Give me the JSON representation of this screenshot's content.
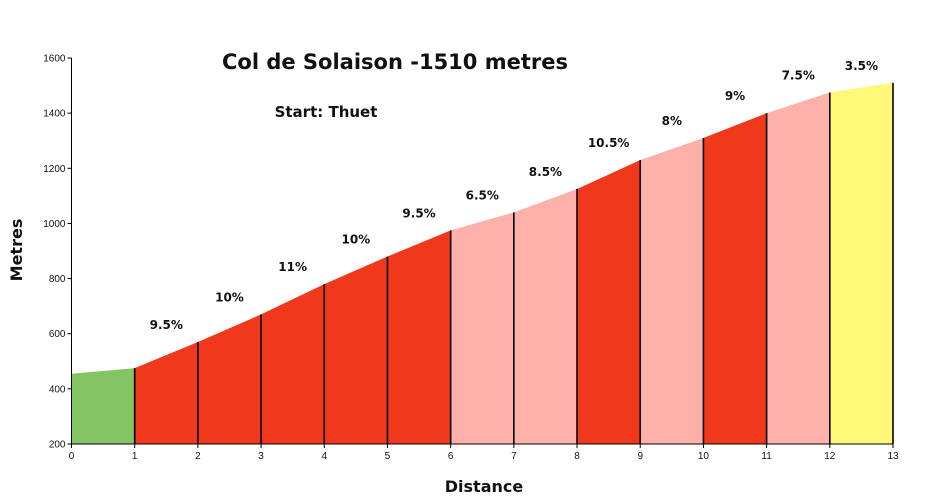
{
  "chart_data": {
    "type": "area",
    "title": "Col de Solaison -1510 metres",
    "subtitle": "Start: Thuet",
    "xlabel": "Distance",
    "ylabel": "Metres",
    "xlim": [
      0,
      13
    ],
    "ylim": [
      200,
      1600
    ],
    "xticks": [
      0,
      1,
      2,
      3,
      4,
      5,
      6,
      7,
      8,
      9,
      10,
      11,
      12,
      13
    ],
    "yticks": [
      200,
      400,
      600,
      800,
      1000,
      1200,
      1400,
      1600
    ],
    "x": [
      0,
      1,
      2,
      3,
      4,
      5,
      6,
      7,
      8,
      9,
      10,
      11,
      12,
      13
    ],
    "elevation": [
      455,
      475,
      570,
      670,
      780,
      880,
      975,
      1040,
      1125,
      1230,
      1310,
      1400,
      1475,
      1510
    ],
    "segments": [
      {
        "from": 0,
        "to": 1,
        "grade": "",
        "color": "#84c463"
      },
      {
        "from": 1,
        "to": 2,
        "grade": "9.5%",
        "color": "#f0391c"
      },
      {
        "from": 2,
        "to": 3,
        "grade": "10%",
        "color": "#f0391c"
      },
      {
        "from": 3,
        "to": 4,
        "grade": "11%",
        "color": "#f0391c"
      },
      {
        "from": 4,
        "to": 5,
        "grade": "10%",
        "color": "#f0391c"
      },
      {
        "from": 5,
        "to": 6,
        "grade": "9.5%",
        "color": "#f0391c"
      },
      {
        "from": 6,
        "to": 7,
        "grade": "6.5%",
        "color": "#feb0ab"
      },
      {
        "from": 7,
        "to": 8,
        "grade": "8.5%",
        "color": "#feb0ab"
      },
      {
        "from": 8,
        "to": 9,
        "grade": "10.5%",
        "color": "#f0391c"
      },
      {
        "from": 9,
        "to": 10,
        "grade": "8%",
        "color": "#feb0ab"
      },
      {
        "from": 10,
        "to": 11,
        "grade": "9%",
        "color": "#f0391c"
      },
      {
        "from": 11,
        "to": 12,
        "grade": "7.5%",
        "color": "#feb0ab"
      },
      {
        "from": 12,
        "to": 13,
        "grade": "3.5%",
        "color": "#fef777"
      }
    ]
  }
}
